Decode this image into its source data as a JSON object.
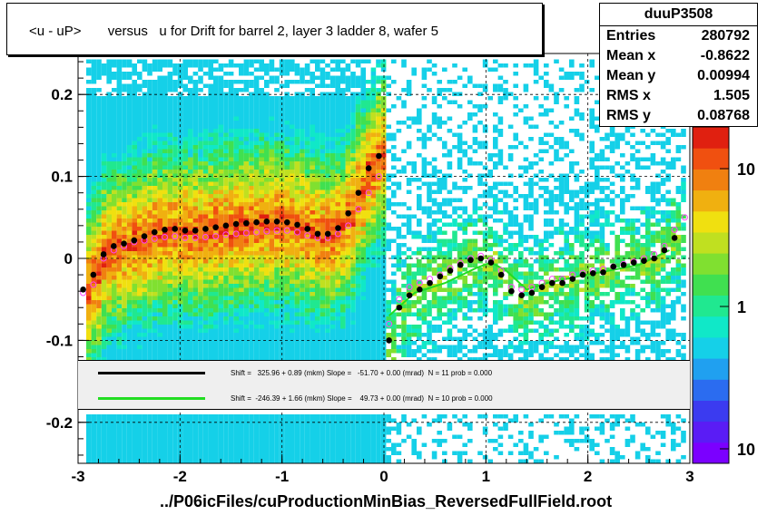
{
  "title": "<u - uP>       versus   u for Drift for barrel 2, layer 3 ladder 8, wafer 5",
  "footer": "../P06icFiles/cuProductionMinBias_ReversedFullField.root",
  "stats": {
    "name": "duuP3508",
    "rows": [
      {
        "key": "Entries",
        "value": "280792"
      },
      {
        "key": "Mean x",
        "value": "-0.8622"
      },
      {
        "key": "Mean y",
        "value": "0.00994"
      },
      {
        "key": "RMS x",
        "value": "1.505"
      },
      {
        "key": "RMS y",
        "value": "0.08768"
      }
    ]
  },
  "legend": [
    {
      "color": "#000000",
      "text": "Shift =   325.96 + 0.89 (mkm) Slope =   -51.70 + 0.00 (mrad)  N = 11 prob = 0.000"
    },
    {
      "color": "#22dd22",
      "text": "Shift =  -246.39 + 1.66 (mkm) Slope =    49.73 + 0.00 (mrad)  N = 10 prob = 0.000"
    }
  ],
  "colors": {
    "profile_black": "#000000",
    "profile_magenta": "#ff44ff",
    "fit_green": "#22dd22",
    "legend_bg": "#efefef"
  },
  "chart_data": {
    "type": "heatmap",
    "x_ticks": [
      "-3",
      "-2",
      "-1",
      "0",
      "1",
      "2",
      "3"
    ],
    "y_ticks": [
      "-0.2",
      "-0.1",
      "0",
      "0.1",
      "0.2"
    ],
    "xlim": [
      -3,
      3
    ],
    "ylim": [
      -0.25,
      0.25
    ],
    "z_ticks": [
      "10",
      "1",
      "10"
    ],
    "grid": true,
    "series": [
      {
        "marker": "filled-circle",
        "x": [
          -2.95,
          -2.85,
          -2.75,
          -2.65,
          -2.55,
          -2.45,
          -2.35,
          -2.25,
          -2.15,
          -2.05,
          -1.95,
          -1.85,
          -1.75,
          -1.65,
          -1.55,
          -1.45,
          -1.35,
          -1.25,
          -1.15,
          -1.05,
          -0.95,
          -0.85,
          -0.75,
          -0.65,
          -0.55,
          -0.45,
          -0.35,
          -0.25,
          -0.15,
          -0.05,
          0.05,
          0.15,
          0.25,
          0.35,
          0.45,
          0.55,
          0.65,
          0.75,
          0.85,
          0.95,
          1.05,
          1.15,
          1.25,
          1.35,
          1.45,
          1.55,
          1.65,
          1.75,
          1.85,
          1.95,
          2.05,
          2.15,
          2.25,
          2.35,
          2.45,
          2.55,
          2.65,
          2.75,
          2.85
        ],
        "y": [
          -0.038,
          -0.02,
          0.005,
          0.015,
          0.018,
          0.022,
          0.027,
          0.032,
          0.035,
          0.036,
          0.034,
          0.034,
          0.036,
          0.038,
          0.04,
          0.042,
          0.043,
          0.044,
          0.045,
          0.045,
          0.044,
          0.041,
          0.036,
          0.03,
          0.03,
          0.037,
          0.055,
          0.08,
          0.11,
          0.125,
          -0.1,
          -0.06,
          -0.045,
          -0.038,
          -0.03,
          -0.022,
          -0.015,
          -0.008,
          -0.002,
          0.0,
          -0.005,
          -0.02,
          -0.04,
          -0.045,
          -0.042,
          -0.035,
          -0.03,
          -0.03,
          -0.025,
          -0.02,
          -0.018,
          -0.017,
          -0.01,
          -0.008,
          -0.005,
          -0.003,
          0.0,
          0.01,
          0.025
        ]
      },
      {
        "marker": "open-circle",
        "x": [
          -2.95,
          -2.85,
          -2.75,
          -2.65,
          -2.55,
          -2.45,
          -2.35,
          -2.25,
          -2.15,
          -2.05,
          -1.95,
          -1.85,
          -1.75,
          -1.65,
          -1.55,
          -1.45,
          -1.35,
          -1.25,
          -1.15,
          -1.05,
          -0.95,
          -0.85,
          -0.75,
          -0.65,
          -0.55,
          -0.45,
          -0.35,
          -0.25,
          -0.15,
          -0.05,
          0.05,
          0.15,
          0.25,
          0.35,
          0.45,
          0.55,
          0.65,
          0.75,
          0.85,
          0.95,
          1.05,
          1.15,
          1.25,
          1.35,
          1.45,
          1.55,
          1.65,
          1.75,
          1.85,
          1.95,
          2.05,
          2.15,
          2.25,
          2.35,
          2.45,
          2.55,
          2.65,
          2.75,
          2.85,
          2.95
        ],
        "y": [
          -0.042,
          -0.032,
          0.0,
          0.01,
          0.015,
          0.02,
          0.022,
          0.024,
          0.026,
          0.027,
          0.025,
          0.025,
          0.026,
          0.027,
          0.029,
          0.03,
          0.031,
          0.032,
          0.033,
          0.034,
          0.034,
          0.032,
          0.028,
          0.025,
          0.025,
          0.03,
          0.04,
          0.06,
          0.08,
          0.1,
          -0.08,
          -0.05,
          -0.035,
          -0.03,
          -0.025,
          -0.02,
          -0.012,
          -0.006,
          0.0,
          0.003,
          -0.002,
          -0.015,
          -0.035,
          -0.038,
          -0.035,
          -0.03,
          -0.025,
          -0.025,
          -0.02,
          -0.018,
          -0.015,
          -0.013,
          -0.01,
          -0.007,
          -0.004,
          0.0,
          0.005,
          0.015,
          0.035,
          0.05
        ]
      }
    ],
    "fits": [
      {
        "x": [
          0.05,
          0.3,
          0.6,
          0.9,
          1.05,
          1.2,
          1.4,
          1.6,
          1.9,
          2.2,
          2.5,
          2.8
        ],
        "y": [
          -0.07,
          -0.042,
          -0.03,
          -0.012,
          -0.005,
          -0.015,
          -0.038,
          -0.03,
          -0.022,
          -0.015,
          -0.008,
          0.01
        ]
      }
    ]
  }
}
